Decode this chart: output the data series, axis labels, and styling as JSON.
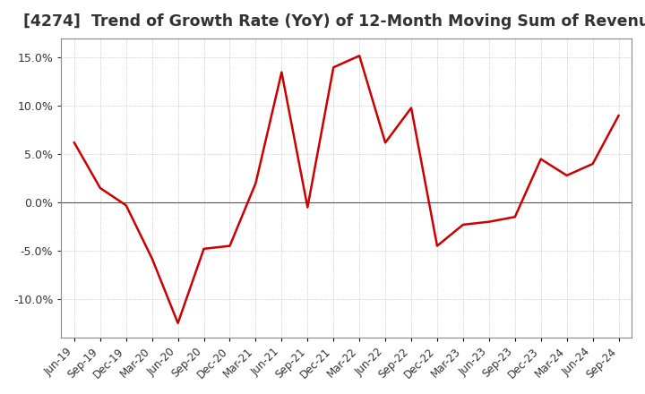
{
  "title": "[4274]  Trend of Growth Rate (YoY) of 12-Month Moving Sum of Revenues",
  "title_fontsize": 12.5,
  "background_color": "#ffffff",
  "line_color": "#cc0000",
  "grid_color": "#aaaaaa",
  "spine_color": "#888888",
  "zero_line_color": "#555555",
  "x_labels": [
    "Jun-19",
    "Sep-19",
    "Dec-19",
    "Mar-20",
    "Jun-20",
    "Sep-20",
    "Dec-20",
    "Mar-21",
    "Jun-21",
    "Sep-21",
    "Dec-21",
    "Mar-22",
    "Jun-22",
    "Sep-22",
    "Dec-22",
    "Mar-23",
    "Jun-23",
    "Sep-23",
    "Dec-23",
    "Mar-24",
    "Jun-24",
    "Sep-24"
  ],
  "values": [
    6.2,
    1.5,
    -0.3,
    -5.8,
    -12.5,
    -4.8,
    -4.5,
    2.0,
    13.5,
    -0.5,
    14.0,
    15.2,
    6.2,
    9.8,
    -4.5,
    -2.3,
    -2.0,
    -1.5,
    4.5,
    2.8,
    4.0,
    9.0
  ],
  "ylim": [
    -14.0,
    17.0
  ],
  "yticks": [
    -10.0,
    -5.0,
    0.0,
    5.0,
    10.0,
    15.0
  ],
  "text_color": "#333333"
}
